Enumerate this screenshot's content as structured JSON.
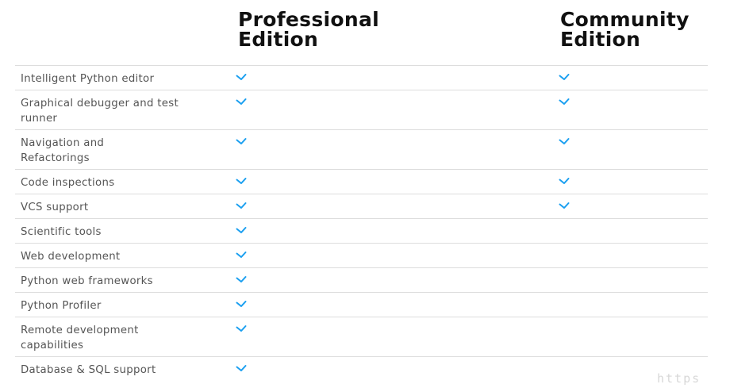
{
  "columns": {
    "professional": "Professional\nEdition",
    "community": "Community\nEdition"
  },
  "check_color": "#1a9ff0",
  "rows": [
    {
      "label": "Intelligent Python editor",
      "professional": true,
      "community": true
    },
    {
      "label": "Graphical debugger and test runner",
      "professional": true,
      "community": true
    },
    {
      "label": "Navigation and Refactorings",
      "professional": true,
      "community": true
    },
    {
      "label": "Code inspections",
      "professional": true,
      "community": true
    },
    {
      "label": "VCS support",
      "professional": true,
      "community": true
    },
    {
      "label": "Scientific tools",
      "professional": true,
      "community": false
    },
    {
      "label": "Web development",
      "professional": true,
      "community": false
    },
    {
      "label": "Python web frameworks",
      "professional": true,
      "community": false
    },
    {
      "label": "Python Profiler",
      "professional": true,
      "community": false
    },
    {
      "label": "Remote development capabilities",
      "professional": true,
      "community": false
    },
    {
      "label": "Database & SQL support",
      "professional": true,
      "community": false
    }
  ],
  "watermark": "https"
}
